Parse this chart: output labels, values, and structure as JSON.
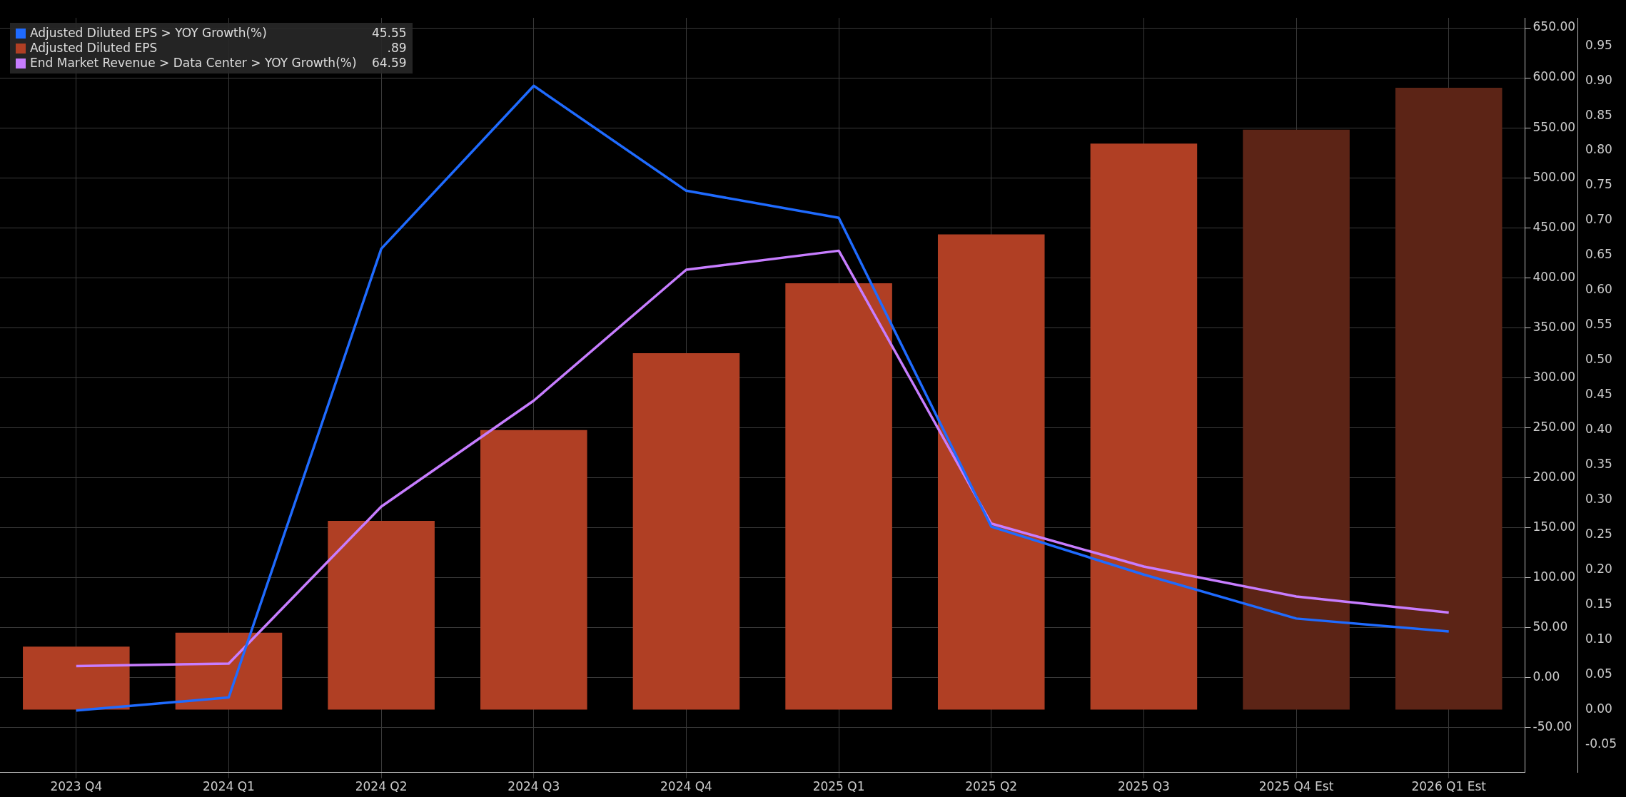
{
  "chart_data": {
    "type": "bar",
    "categories": [
      "2023 Q4",
      "2024 Q1",
      "2024 Q2",
      "2024 Q3",
      "2024 Q4",
      "2025 Q1",
      "2025 Q2",
      "2025 Q3",
      "2025 Q4 Est",
      "2026 Q1 Est"
    ],
    "series": [
      {
        "name": "Adjusted Diluted EPS > YOY Growth(%)",
        "type": "line",
        "axis": "y",
        "color": "#1f6bff",
        "values": [
          -33,
          -20,
          429,
          592,
          487,
          460,
          151,
          103,
          59,
          46
        ]
      },
      {
        "name": "Adjusted Diluted EPS",
        "axis": "y2",
        "color": "#b03f24",
        "colors": [
          "#b03f24",
          "#b03f24",
          "#b03f24",
          "#b03f24",
          "#b03f24",
          "#b03f24",
          "#b03f24",
          "#b03f24",
          "#5c2416",
          "#5c2416"
        ],
        "values": [
          0.09,
          0.11,
          0.27,
          0.4,
          0.51,
          0.61,
          0.68,
          0.81,
          0.83,
          0.89
        ]
      },
      {
        "name": "End Market Revenue > Data Center > YOY Growth(%)",
        "type": "line",
        "axis": "y",
        "color": "#c77dff",
        "values": [
          11.5,
          14,
          171,
          277,
          408,
          427,
          154,
          111,
          81,
          65
        ]
      }
    ],
    "annotations": [
      "45.55",
      ".89",
      "64.59"
    ],
    "ylim": [
      -95,
      660
    ],
    "yticks": [
      {
        "value": -50,
        "label": "-50.00"
      },
      {
        "value": 0,
        "label": "0.00"
      },
      {
        "value": 50,
        "label": "50.00"
      },
      {
        "value": 100,
        "label": "100.00"
      },
      {
        "value": 150,
        "label": "150.00"
      },
      {
        "value": 200,
        "label": "200.00"
      },
      {
        "value": 250,
        "label": "250.00"
      },
      {
        "value": 300,
        "label": "300.00"
      },
      {
        "value": 350,
        "label": "350.00"
      },
      {
        "value": 400,
        "label": "400.00"
      },
      {
        "value": 450,
        "label": "450.00"
      },
      {
        "value": 500,
        "label": "500.00"
      },
      {
        "value": 550,
        "label": "550.00"
      },
      {
        "value": 600,
        "label": "600.00"
      },
      {
        "value": 650,
        "label": "650.00"
      }
    ],
    "y2lim": [
      -0.09,
      0.99
    ],
    "y2ticks": [
      {
        "value": -0.05,
        "label": "-0.05"
      },
      {
        "value": 0,
        "label": "0.00"
      },
      {
        "value": 0.05,
        "label": "0.05"
      },
      {
        "value": 0.1,
        "label": "0.10"
      },
      {
        "value": 0.15,
        "label": "0.15"
      },
      {
        "value": 0.2,
        "label": "0.20"
      },
      {
        "value": 0.25,
        "label": "0.25"
      },
      {
        "value": 0.3,
        "label": "0.30"
      },
      {
        "value": 0.35,
        "label": "0.35"
      },
      {
        "value": 0.4,
        "label": "0.40"
      },
      {
        "value": 0.45,
        "label": "0.45"
      },
      {
        "value": 0.5,
        "label": "0.50"
      },
      {
        "value": 0.55,
        "label": "0.55"
      },
      {
        "value": 0.6,
        "label": "0.60"
      },
      {
        "value": 0.65,
        "label": "0.65"
      },
      {
        "value": 0.7,
        "label": "0.70"
      },
      {
        "value": 0.75,
        "label": "0.75"
      },
      {
        "value": 0.8,
        "label": "0.80"
      },
      {
        "value": 0.85,
        "label": "0.85"
      },
      {
        "value": 0.9,
        "label": "0.90"
      },
      {
        "value": 0.95,
        "label": "0.95"
      }
    ],
    "grid": true,
    "legend": "top left",
    "marker": "none",
    "line_style": "solid"
  }
}
